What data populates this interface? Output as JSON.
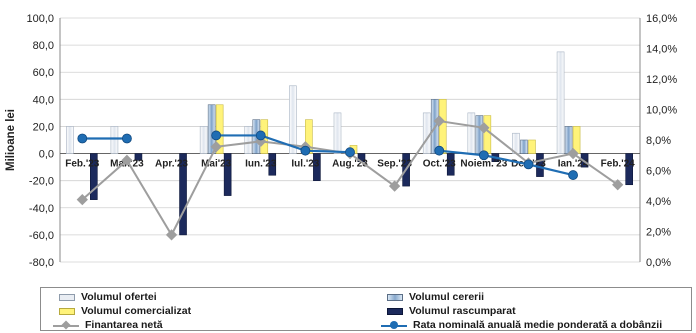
{
  "chart_data": {
    "type": "bar",
    "title": "",
    "ylabel": "Milioane lei",
    "ylim": [
      -80,
      100
    ],
    "y2lim": [
      0,
      16
    ],
    "y_ticks": [
      "100,0",
      "80,0",
      "60,0",
      "40,0",
      "20,0",
      "0,0",
      "-20,0",
      "-40,0",
      "-60,0",
      "-80,0"
    ],
    "y2_ticks": [
      "16,0%",
      "14,0%",
      "12,0%",
      "10,0%",
      "8,0%",
      "6,0%",
      "4,0%",
      "2,0%",
      "0,0%"
    ],
    "categories": [
      "Feb.'23",
      "Mar.'23",
      "Apr.'23",
      "Mai'23",
      "Iun.'23",
      "Iul.'23",
      "Aug.'23",
      "Sep.'23",
      "Oct.'23",
      "Noiem.'23",
      "Dec.'23",
      "Ian.'24",
      "Feb.'24"
    ],
    "grid": true,
    "legend_position": "bottom",
    "series": [
      {
        "name": "Volumul ofertei",
        "type": "bar",
        "axis": "left",
        "values": [
          20,
          20,
          0,
          20,
          20,
          50,
          30,
          0,
          30,
          30,
          15,
          75,
          0
        ]
      },
      {
        "name": "Volumul cererii",
        "type": "bar",
        "axis": "left",
        "values": [
          0,
          0,
          0,
          36,
          25,
          0,
          0,
          0,
          40,
          28,
          10,
          20,
          0
        ]
      },
      {
        "name": "Volumul comercializat",
        "type": "bar",
        "axis": "left",
        "values": [
          0,
          0,
          0,
          36,
          25,
          25,
          6,
          0,
          40,
          28,
          10,
          20,
          0
        ]
      },
      {
        "name": "Volumul rascumparat",
        "type": "bar",
        "axis": "left",
        "values": [
          -34,
          -5,
          -60,
          -31,
          -16,
          -20,
          -6,
          -24,
          -16,
          -6,
          -17,
          -10,
          -23
        ]
      },
      {
        "name": "Finantarea netă",
        "type": "line",
        "axis": "left",
        "values": [
          -34,
          -5,
          -60,
          5,
          9,
          5,
          0,
          -24,
          24,
          19,
          -7,
          0,
          -23
        ]
      },
      {
        "name": "Rata nominală anuală medie ponderată a dobânzii",
        "type": "line",
        "axis": "right",
        "values": [
          8.1,
          8.1,
          null,
          8.3,
          8.3,
          7.3,
          7.2,
          null,
          7.3,
          7.0,
          6.4,
          5.7,
          null
        ]
      }
    ]
  },
  "colors": {
    "offer": "#e9edf3",
    "demand": "#9fb8d6",
    "sold": "#fff37a",
    "repo": "#1c2a5c",
    "fin": "#9e9e9e",
    "rate": "#1f6db3"
  }
}
